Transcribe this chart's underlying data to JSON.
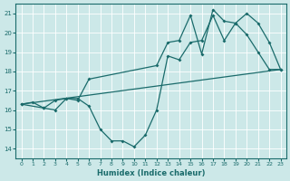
{
  "xlabel": "Humidex (Indice chaleur)",
  "xlim": [
    -0.5,
    23.5
  ],
  "ylim": [
    13.5,
    21.5
  ],
  "xticks": [
    0,
    1,
    2,
    3,
    4,
    5,
    6,
    7,
    8,
    9,
    10,
    11,
    12,
    13,
    14,
    15,
    16,
    17,
    18,
    19,
    20,
    21,
    22,
    23
  ],
  "yticks": [
    14,
    15,
    16,
    17,
    18,
    19,
    20,
    21
  ],
  "bg_color": "#cce8e8",
  "line_color": "#1a6b6b",
  "series1": [
    [
      0,
      16.3
    ],
    [
      1,
      16.4
    ],
    [
      2,
      16.1
    ],
    [
      3,
      16.0
    ],
    [
      4,
      16.6
    ],
    [
      5,
      16.6
    ],
    [
      6,
      16.2
    ],
    [
      7,
      15.0
    ],
    [
      8,
      14.4
    ],
    [
      9,
      14.4
    ],
    [
      10,
      14.1
    ],
    [
      11,
      14.7
    ],
    [
      12,
      16.0
    ],
    [
      13,
      18.8
    ],
    [
      14,
      18.6
    ],
    [
      15,
      19.5
    ],
    [
      16,
      19.6
    ],
    [
      17,
      20.9
    ],
    [
      18,
      19.6
    ],
    [
      19,
      20.5
    ],
    [
      20,
      19.9
    ],
    [
      21,
      19.0
    ],
    [
      22,
      18.1
    ],
    [
      23,
      18.1
    ]
  ],
  "series2": [
    [
      0,
      16.3
    ],
    [
      2,
      16.1
    ],
    [
      3,
      16.5
    ],
    [
      4,
      16.6
    ],
    [
      5,
      16.5
    ],
    [
      6,
      17.6
    ],
    [
      12,
      18.3
    ],
    [
      13,
      19.5
    ],
    [
      14,
      19.6
    ],
    [
      15,
      20.9
    ],
    [
      16,
      18.9
    ],
    [
      17,
      21.2
    ],
    [
      18,
      20.6
    ],
    [
      19,
      20.5
    ],
    [
      20,
      21.0
    ],
    [
      21,
      20.5
    ],
    [
      22,
      19.5
    ],
    [
      23,
      18.1
    ]
  ],
  "series3": [
    [
      0,
      16.3
    ],
    [
      23,
      18.1
    ]
  ]
}
